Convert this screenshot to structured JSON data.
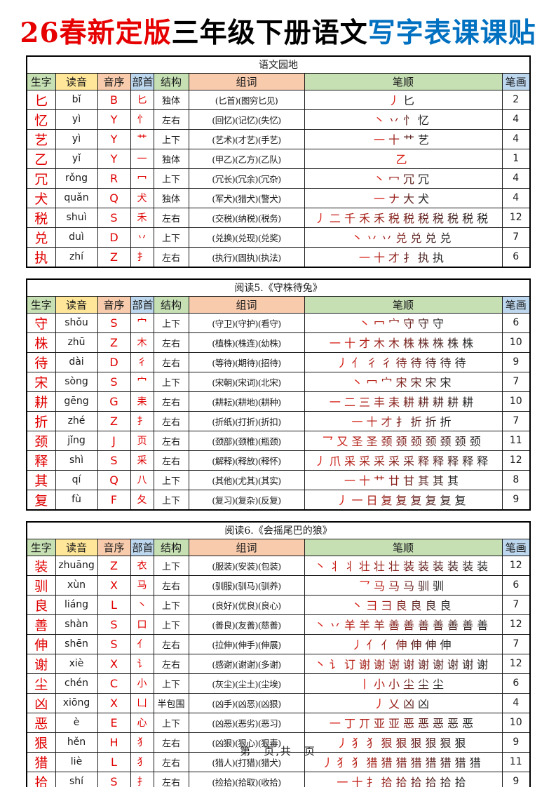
{
  "title": {
    "part1": "26春新定版",
    "part2": "三年级下册语文",
    "part3": "写字表课课贴",
    "part1_color": "#e60000",
    "part2_color": "#000000",
    "part3_color": "#0070c0"
  },
  "colors": {
    "char_red": "#e00000",
    "stroke_red": "#d61e14",
    "stroke_black": "#282828",
    "header_green": "#c6e0b4",
    "header_yellow": "#ffe699",
    "header_peach": "#f8cbad",
    "header_blue": "#bdd7ee",
    "border": "#000000"
  },
  "columns": [
    {
      "key": "char",
      "label": "生字",
      "bg": "#c6e0b4"
    },
    {
      "key": "pinyin",
      "label": "读音",
      "bg": "#ffe699"
    },
    {
      "key": "initial",
      "label": "音序",
      "bg": "#f8cbad"
    },
    {
      "key": "radical",
      "label": "部首",
      "bg": "#bdd7ee"
    },
    {
      "key": "structure",
      "label": "结构",
      "bg": "#c6e0b4"
    },
    {
      "key": "words",
      "label": "组词",
      "bg": "#f8cbad"
    },
    {
      "key": "strokes",
      "label": "笔顺",
      "bg": "#c6e0b4"
    },
    {
      "key": "count",
      "label": "笔画",
      "bg": "#bdd7ee"
    }
  ],
  "tables": [
    {
      "section": "语文园地",
      "rows": [
        {
          "char": "匕",
          "pinyin": "bǐ",
          "initial": "B",
          "radical": "匕",
          "structure": "独体",
          "words": "(匕首)(图穷匕见)",
          "steps": [
            "丿",
            "匕"
          ],
          "count": "2"
        },
        {
          "char": "忆",
          "pinyin": "yì",
          "initial": "Y",
          "radical": "忄",
          "structure": "左右",
          "words": "(回忆)(记忆)(失忆)",
          "steps": [
            "丶",
            "丷",
            "忄",
            "忆"
          ],
          "count": "4"
        },
        {
          "char": "艺",
          "pinyin": "yì",
          "initial": "Y",
          "radical": "艹",
          "structure": "上下",
          "words": "(艺术)(才艺)(手艺)",
          "steps": [
            "一",
            "十",
            "艹",
            "艺"
          ],
          "count": "4"
        },
        {
          "char": "乙",
          "pinyin": "yǐ",
          "initial": "Y",
          "radical": "一",
          "structure": "独体",
          "words": "(甲乙)(乙方)(乙队)",
          "steps": [
            "乙"
          ],
          "count": "1"
        },
        {
          "char": "冗",
          "pinyin": "rǒng",
          "initial": "R",
          "radical": "冖",
          "structure": "上下",
          "words": "(冗长)(冗余)(冗杂)",
          "steps": [
            "丶",
            "冖",
            "冗",
            "冗"
          ],
          "count": "4"
        },
        {
          "char": "犬",
          "pinyin": "quǎn",
          "initial": "Q",
          "radical": "犬",
          "structure": "独体",
          "words": "(军犬)(猎犬)(警犬)",
          "steps": [
            "一",
            "ナ",
            "大",
            "犬"
          ],
          "count": "4"
        },
        {
          "char": "税",
          "pinyin": "shuì",
          "initial": "S",
          "radical": "禾",
          "structure": "左右",
          "words": "(交税)(纳税)(税务)",
          "steps": [
            "丿",
            "二",
            "千",
            "禾",
            "禾",
            "税",
            "税",
            "税",
            "税",
            "税",
            "税",
            "税"
          ],
          "count": "12"
        },
        {
          "char": "兑",
          "pinyin": "duì",
          "initial": "D",
          "radical": "丷",
          "structure": "上下",
          "words": "(兑换)(兑现)(兑奖)",
          "steps": [
            "丶",
            "丷",
            "丷",
            "兑",
            "兑",
            "兑",
            "兑"
          ],
          "count": "7"
        },
        {
          "char": "执",
          "pinyin": "zhí",
          "initial": "Z",
          "radical": "扌",
          "structure": "左右",
          "words": "(执行)(固执)(执法)",
          "steps": [
            "一",
            "十",
            "才",
            "扌",
            "执",
            "执"
          ],
          "count": "6"
        }
      ]
    },
    {
      "section": "阅读5.《守株待兔》",
      "rows": [
        {
          "char": "守",
          "pinyin": "shǒu",
          "initial": "S",
          "radical": "宀",
          "structure": "上下",
          "words": "(守卫)(守护)(看守)",
          "steps": [
            "丶",
            "冖",
            "宀",
            "守",
            "守",
            "守"
          ],
          "count": "6"
        },
        {
          "char": "株",
          "pinyin": "zhū",
          "initial": "Z",
          "radical": "木",
          "structure": "左右",
          "words": "(植株)(株连)(幼株)",
          "steps": [
            "一",
            "十",
            "才",
            "木",
            "木",
            "株",
            "株",
            "株",
            "株",
            "株"
          ],
          "count": "10"
        },
        {
          "char": "待",
          "pinyin": "dài",
          "initial": "D",
          "radical": "彳",
          "structure": "左右",
          "words": "(等待)(期待)(招待)",
          "steps": [
            "丿",
            "亻",
            "彳",
            "彳",
            "待",
            "待",
            "待",
            "待",
            "待"
          ],
          "count": "9"
        },
        {
          "char": "宋",
          "pinyin": "sòng",
          "initial": "S",
          "radical": "宀",
          "structure": "上下",
          "words": "(宋朝)(宋词)(北宋)",
          "steps": [
            "丶",
            "冖",
            "宀",
            "宋",
            "宋",
            "宋",
            "宋"
          ],
          "count": "7"
        },
        {
          "char": "耕",
          "pinyin": "gēng",
          "initial": "G",
          "radical": "耒",
          "structure": "左右",
          "words": "(耕耘)(耕地)(耕种)",
          "steps": [
            "一",
            "二",
            "三",
            "丰",
            "耒",
            "耕",
            "耕",
            "耕",
            "耕",
            "耕"
          ],
          "count": "10"
        },
        {
          "char": "折",
          "pinyin": "zhé",
          "initial": "Z",
          "radical": "扌",
          "structure": "左右",
          "words": "(折纸)(打折)(折扣)",
          "steps": [
            "一",
            "十",
            "才",
            "扌",
            "折",
            "折",
            "折"
          ],
          "count": "7"
        },
        {
          "char": "颈",
          "pinyin": "jǐng",
          "initial": "J",
          "radical": "页",
          "structure": "左右",
          "words": "(颈部)(颈椎)(瓶颈)",
          "steps": [
            "乛",
            "又",
            "圣",
            "圣",
            "颈",
            "颈",
            "颈",
            "颈",
            "颈",
            "颈",
            "颈"
          ],
          "count": "11"
        },
        {
          "char": "释",
          "pinyin": "shì",
          "initial": "S",
          "radical": "采",
          "structure": "左右",
          "words": "(解释)(释放)(释怀)",
          "steps": [
            "丿",
            "爪",
            "采",
            "采",
            "采",
            "采",
            "采",
            "释",
            "释",
            "释",
            "释",
            "释"
          ],
          "count": "12"
        },
        {
          "char": "其",
          "pinyin": "qí",
          "initial": "Q",
          "radical": "八",
          "structure": "上下",
          "words": "(其他)(尤其)(其实)",
          "steps": [
            "一",
            "十",
            "艹",
            "廿",
            "甘",
            "其",
            "其",
            "其"
          ],
          "count": "8"
        },
        {
          "char": "复",
          "pinyin": "fù",
          "initial": "F",
          "radical": "夂",
          "structure": "上下",
          "words": "(复习)(复杂)(反复)",
          "steps": [
            "丿",
            "一",
            "日",
            "复",
            "复",
            "复",
            "复",
            "复",
            "复"
          ],
          "count": "9"
        }
      ]
    },
    {
      "section": "阅读6.《会摇尾巴的狼》",
      "rows": [
        {
          "char": "装",
          "pinyin": "zhuāng",
          "initial": "Z",
          "radical": "衣",
          "structure": "上下",
          "words": "(服装)(安装)(包装)",
          "steps": [
            "丶",
            "丬",
            "丬",
            "壮",
            "壮",
            "壮",
            "装",
            "装",
            "装",
            "装",
            "装",
            "装"
          ],
          "count": "12"
        },
        {
          "char": "驯",
          "pinyin": "xùn",
          "initial": "X",
          "radical": "马",
          "structure": "左右",
          "words": "(驯服)(驯马)(驯养)",
          "steps": [
            "乛",
            "马",
            "马",
            "马",
            "驯",
            "驯"
          ],
          "count": "6"
        },
        {
          "char": "良",
          "pinyin": "liáng",
          "initial": "L",
          "radical": "丶",
          "structure": "上下",
          "words": "(良好)(优良)(良心)",
          "steps": [
            "丶",
            "彐",
            "彐",
            "良",
            "良",
            "良",
            "良"
          ],
          "count": "7"
        },
        {
          "char": "善",
          "pinyin": "shàn",
          "initial": "S",
          "radical": "口",
          "structure": "上下",
          "words": "(善良)(友善)(慈善)",
          "steps": [
            "丶",
            "丷",
            "羊",
            "羊",
            "羊",
            "善",
            "善",
            "善",
            "善",
            "善",
            "善",
            "善"
          ],
          "count": "12"
        },
        {
          "char": "伸",
          "pinyin": "shēn",
          "initial": "S",
          "radical": "亻",
          "structure": "左右",
          "words": "(拉伸)(伸手)(伸展)",
          "steps": [
            "丿",
            "亻",
            "亻",
            "伸",
            "伸",
            "伸",
            "伸"
          ],
          "count": "7"
        },
        {
          "char": "谢",
          "pinyin": "xiè",
          "initial": "X",
          "radical": "讠",
          "structure": "左右",
          "words": "(感谢)(谢谢)(多谢)",
          "steps": [
            "丶",
            "讠",
            "订",
            "谢",
            "谢",
            "谢",
            "谢",
            "谢",
            "谢",
            "谢",
            "谢",
            "谢"
          ],
          "count": "12"
        },
        {
          "char": "尘",
          "pinyin": "chén",
          "initial": "C",
          "radical": "小",
          "structure": "上下",
          "words": "(灰尘)(尘土)(尘埃)",
          "steps": [
            "丨",
            "小",
            "小",
            "尘",
            "尘",
            "尘"
          ],
          "count": "6"
        },
        {
          "char": "凶",
          "pinyin": "xiōng",
          "initial": "X",
          "radical": "凵",
          "structure": "半包围",
          "words": "(凶手)(凶恶)(凶狠)",
          "steps": [
            "丿",
            "乂",
            "凶",
            "凶"
          ],
          "count": "4"
        },
        {
          "char": "恶",
          "pinyin": "è",
          "initial": "E",
          "radical": "心",
          "structure": "上下",
          "words": "(凶恶)(恶劣)(恶习)",
          "steps": [
            "一",
            "丁",
            "丌",
            "亚",
            "亚",
            "恶",
            "恶",
            "恶",
            "恶",
            "恶"
          ],
          "count": "10"
        },
        {
          "char": "狠",
          "pinyin": "hěn",
          "initial": "H",
          "radical": "犭",
          "structure": "左右",
          "words": "(凶狠)(狠心)(狠毒)",
          "steps": [
            "丿",
            "犭",
            "犭",
            "狠",
            "狠",
            "狠",
            "狠",
            "狠",
            "狠"
          ],
          "count": "9"
        },
        {
          "char": "猎",
          "pinyin": "liè",
          "initial": "L",
          "radical": "犭",
          "structure": "左右",
          "words": "(猎人)(打猎)(猎犬)",
          "steps": [
            "丿",
            "犭",
            "犭",
            "猎",
            "猎",
            "猎",
            "猎",
            "猎",
            "猎",
            "猎",
            "猎"
          ],
          "count": "11"
        },
        {
          "char": "拾",
          "pinyin": "shí",
          "initial": "S",
          "radical": "扌",
          "structure": "左右",
          "words": "(捡拾)(拾取)(收拾)",
          "steps": [
            "一",
            "十",
            "扌",
            "拾",
            "拾",
            "拾",
            "拾",
            "拾",
            "拾"
          ],
          "count": "9"
        }
      ]
    }
  ],
  "footer": "第　页,共　页"
}
